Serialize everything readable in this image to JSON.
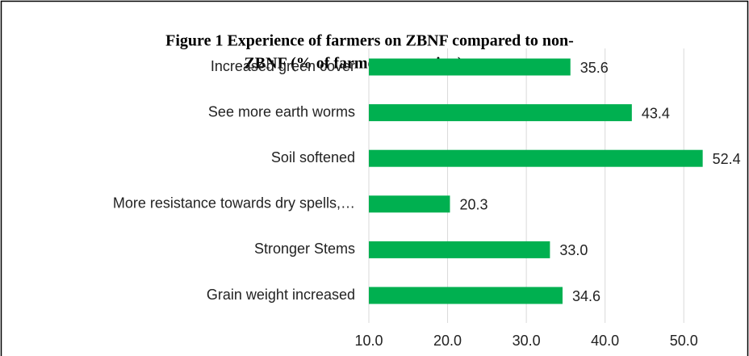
{
  "chart_data": {
    "type": "barh",
    "title": [
      "Figure  1 Experience of farmers on ZBNF compared to non-",
      "ZBNF (% of farmers reporting)"
    ],
    "categories": [
      "Increased green cover",
      "See more earth worms",
      "Soil softened",
      "More resistance towards dry spells,…",
      "Stronger Stems",
      "Grain weight increased"
    ],
    "values": [
      35.6,
      43.4,
      52.4,
      20.3,
      33.0,
      34.6
    ],
    "value_labels": [
      "35.6",
      "43.4",
      "52.4",
      "20.3",
      "33.0",
      "34.6"
    ],
    "color": "#00b050",
    "xlim": [
      10,
      55
    ],
    "xticks": [
      {
        "value": 10,
        "label": "10.0"
      },
      {
        "value": 20,
        "label": "20.0"
      },
      {
        "value": 30,
        "label": "30.0"
      },
      {
        "value": 40,
        "label": "40.0"
      },
      {
        "value": 50,
        "label": "50.0"
      }
    ],
    "grid": true
  }
}
